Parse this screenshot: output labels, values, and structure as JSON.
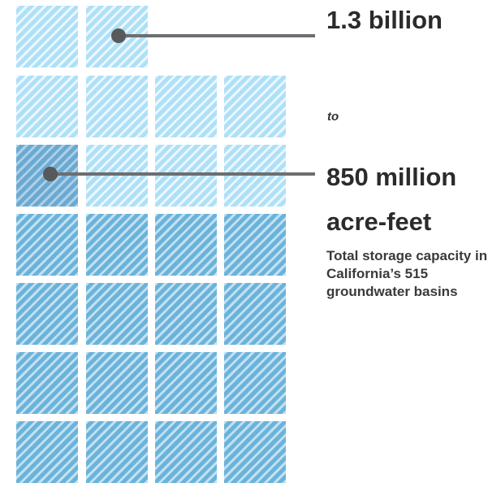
{
  "labels": {
    "high_estimate": "1.3 billion",
    "connector": "to",
    "low_estimate": "850 million",
    "unit": "acre-feet",
    "description": "Total storage capacity in California’s 515 groundwater basins"
  },
  "colors": {
    "light_tile": "#aee0f7",
    "dark_tile": "#6ab3db",
    "leader_line": "#6d6e71",
    "text": "#2b2b2b"
  }
}
